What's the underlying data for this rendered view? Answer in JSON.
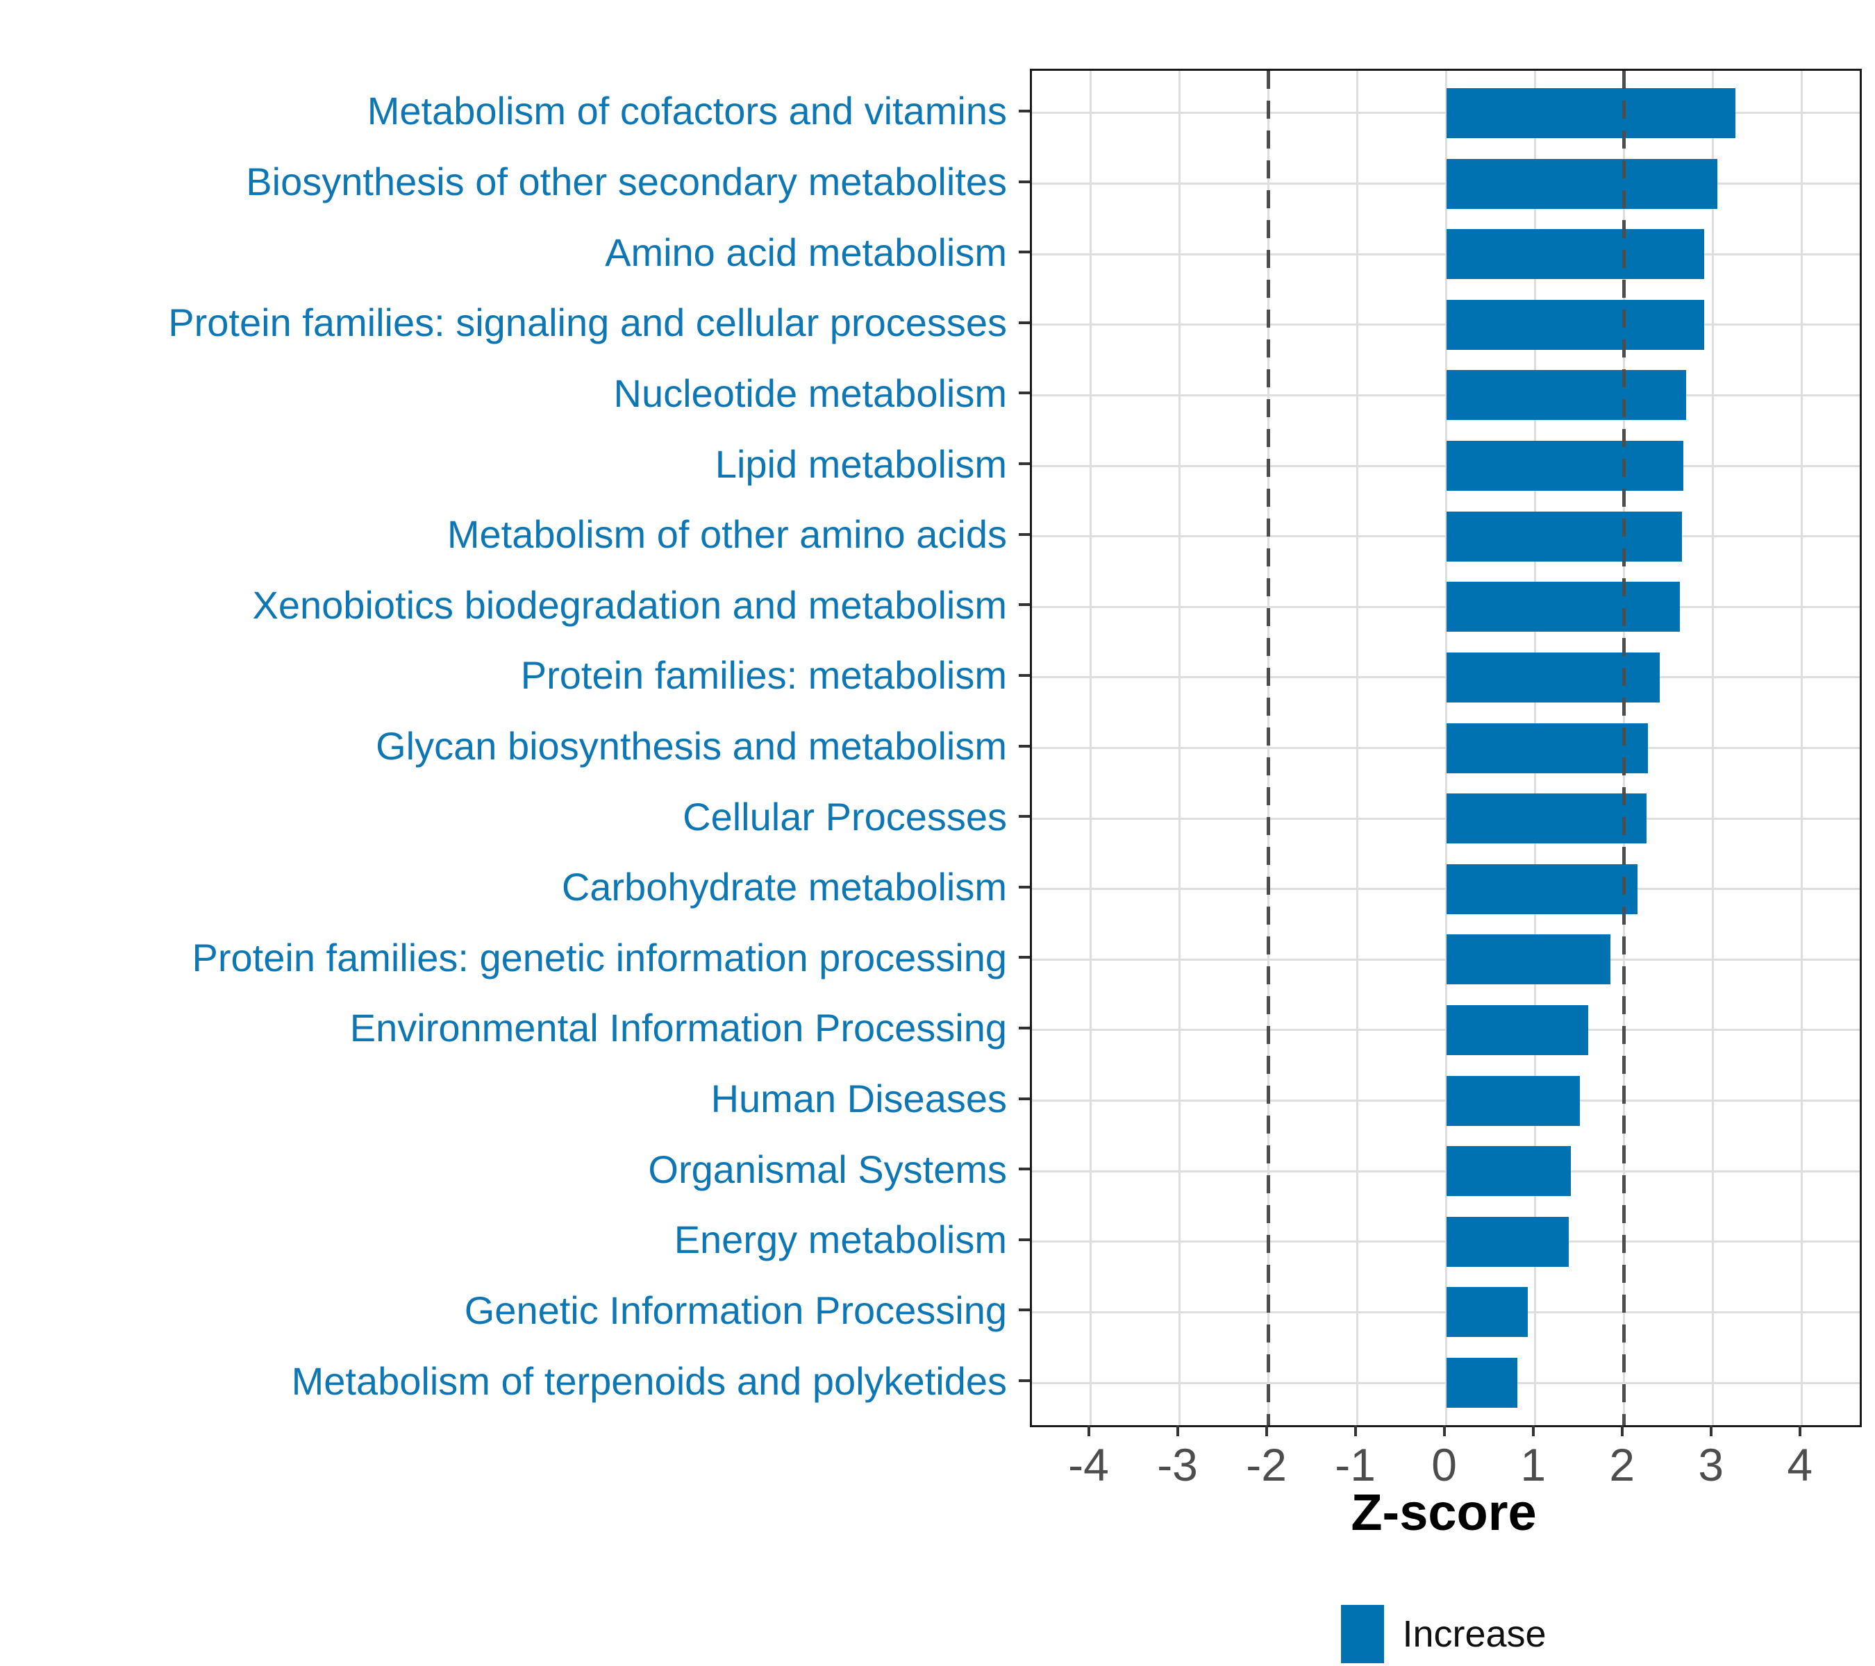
{
  "figure": {
    "background": "#ffffff"
  },
  "chart_data": {
    "type": "bar",
    "orientation": "horizontal",
    "title": "",
    "xlabel": "Z-score",
    "ylabel": "",
    "categories": [
      "Metabolism of cofactors and vitamins",
      "Biosynthesis of other secondary metabolites",
      "Amino acid metabolism",
      "Protein families: signaling and cellular processes",
      "Nucleotide metabolism",
      "Lipid metabolism",
      "Metabolism of other amino acids",
      "Xenobiotics biodegradation and metabolism",
      "Protein families: metabolism",
      "Glycan biosynthesis and metabolism",
      "Cellular Processes",
      "Carbohydrate metabolism",
      "Protein families: genetic information processing",
      "Environmental Information Processing",
      "Human Diseases",
      "Organismal Systems",
      "Energy metabolism",
      "Genetic Information Processing",
      "Metabolism of terpenoids and polyketides"
    ],
    "series": [
      {
        "name": "Increase",
        "values": [
          3.25,
          3.05,
          2.9,
          2.9,
          2.7,
          2.67,
          2.65,
          2.63,
          2.4,
          2.27,
          2.25,
          2.15,
          1.85,
          1.6,
          1.5,
          1.4,
          1.38,
          0.92,
          0.8
        ]
      }
    ],
    "x_ticks": [
      -4,
      -3,
      -2,
      -1,
      0,
      1,
      2,
      3,
      4
    ],
    "xlim": [
      -4.66,
      4.65
    ],
    "reference_lines": [
      -2,
      2
    ],
    "grid": "major-only",
    "legend_position": "bottom-center",
    "legend_entries": [
      "Increase"
    ],
    "colors": {
      "bar": "#0072b2",
      "category_label": "#0d77b5",
      "tick_label": "#4d4d4d",
      "axis_title": "#000000",
      "gridline": "#dedede",
      "reference_line": "#4d4d4d",
      "panel_border": "#1a1a1a",
      "legend_text": "#111111"
    }
  }
}
